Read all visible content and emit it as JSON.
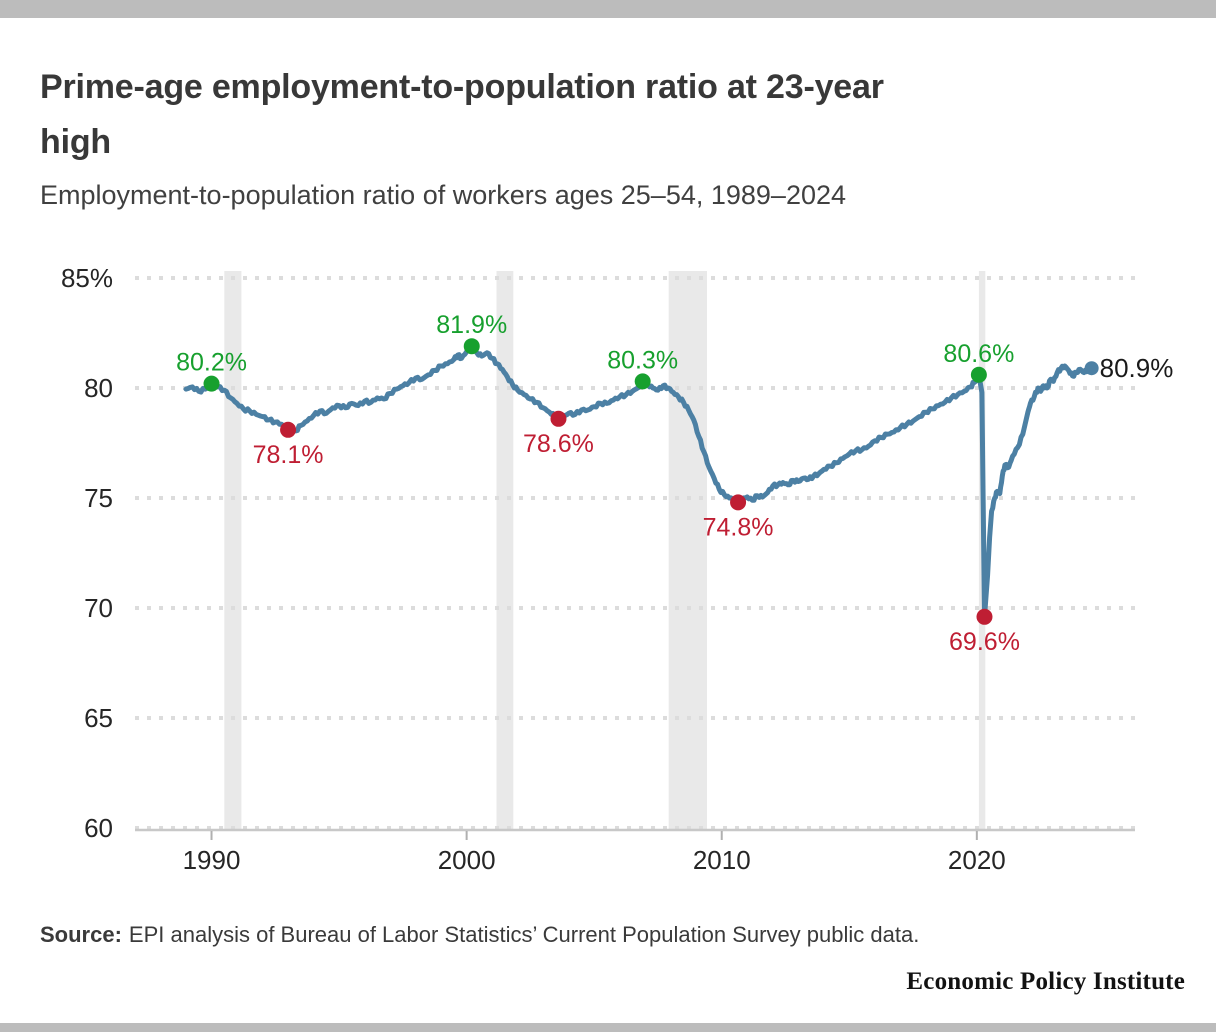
{
  "page": {
    "top_bar_color": "#bcbcbc",
    "bottom_bar_color": "#bcbcbc",
    "background": "#ffffff"
  },
  "header": {
    "title_line1": "Prime-age employment-to-population ratio at 23-year",
    "title_line2": "high",
    "subtitle": "Employment-to-population ratio of workers ages 25–54, 1989–2024"
  },
  "source": {
    "label": "Source:",
    "text": "EPI analysis of Bureau of Labor Statistics’ Current Population Survey public data."
  },
  "footer": {
    "brand": "Economic Policy Institute"
  },
  "chart_data": {
    "type": "line",
    "title": "Prime-age employment-to-population ratio at 23-year high",
    "subtitle": "Employment-to-population ratio of workers ages 25–54, 1989–2024",
    "xlabel": "",
    "ylabel": "",
    "x_domain": [
      1987.0,
      2026.2
    ],
    "y_domain": [
      60,
      85
    ],
    "grid": "dotted-horizontal",
    "legend": "none",
    "line_color": "#4c80a4",
    "peak_color": "#17a02e",
    "trough_color": "#bf1e33",
    "end_label_color": "#1a1a1a",
    "recession_color": "#e9e9e9",
    "gridline_color": "#dcdcdc",
    "axis_color": "#c8c8c8",
    "tick_color": "#b0b0b0",
    "tick_label_color": "#262626",
    "y_ticks": [
      {
        "value": 85,
        "label": "85%"
      },
      {
        "value": 80,
        "label": "80"
      },
      {
        "value": 75,
        "label": "75"
      },
      {
        "value": 70,
        "label": "70"
      },
      {
        "value": 65,
        "label": "65"
      },
      {
        "value": 60,
        "label": "60"
      }
    ],
    "x_ticks": [
      {
        "value": 1990,
        "label": "1990"
      },
      {
        "value": 2000,
        "label": "2000"
      },
      {
        "value": 2010,
        "label": "2010"
      },
      {
        "value": 2020,
        "label": "2020"
      }
    ],
    "recessions": [
      [
        1990.5,
        1991.17
      ],
      [
        2001.17,
        2001.83
      ],
      [
        2007.92,
        2009.42
      ],
      [
        2020.08,
        2020.33
      ]
    ],
    "annotations": [
      {
        "year": 1990.0,
        "value": 80.2,
        "label": "80.2%",
        "kind": "peak",
        "placement": "above"
      },
      {
        "year": 1993.0,
        "value": 78.1,
        "label": "78.1%",
        "kind": "trough",
        "placement": "below"
      },
      {
        "year": 2000.2,
        "value": 81.9,
        "label": "81.9%",
        "kind": "peak",
        "placement": "above"
      },
      {
        "year": 2003.6,
        "value": 78.6,
        "label": "78.6%",
        "kind": "trough",
        "placement": "below"
      },
      {
        "year": 2006.9,
        "value": 80.3,
        "label": "80.3%",
        "kind": "peak",
        "placement": "above"
      },
      {
        "year": 2010.64,
        "value": 74.8,
        "label": "74.8%",
        "kind": "trough",
        "placement": "below"
      },
      {
        "year": 2020.08,
        "value": 80.6,
        "label": "80.6%",
        "kind": "peak",
        "placement": "above"
      },
      {
        "year": 2020.3,
        "value": 69.6,
        "label": "69.6%",
        "kind": "trough",
        "placement": "below"
      }
    ],
    "end_label": {
      "year": 2024.5,
      "value": 80.9,
      "label": "80.9%"
    },
    "series": [
      {
        "name": "Prime-age employment-to-population ratio",
        "points": [
          [
            1989.0,
            79.95
          ],
          [
            1989.25,
            80.05
          ],
          [
            1989.5,
            79.85
          ],
          [
            1989.75,
            79.95
          ],
          [
            1990.0,
            80.2
          ],
          [
            1990.25,
            80.05
          ],
          [
            1990.5,
            79.9
          ],
          [
            1990.75,
            79.55
          ],
          [
            1991.0,
            79.3
          ],
          [
            1991.25,
            79.05
          ],
          [
            1991.5,
            78.95
          ],
          [
            1991.75,
            78.8
          ],
          [
            1992.0,
            78.7
          ],
          [
            1992.25,
            78.55
          ],
          [
            1992.5,
            78.45
          ],
          [
            1992.75,
            78.35
          ],
          [
            1993.0,
            78.1
          ],
          [
            1993.3,
            78.05
          ],
          [
            1993.5,
            78.3
          ],
          [
            1993.75,
            78.5
          ],
          [
            1994.0,
            78.75
          ],
          [
            1994.25,
            78.95
          ],
          [
            1994.5,
            78.85
          ],
          [
            1994.75,
            79.1
          ],
          [
            1995.0,
            79.2
          ],
          [
            1995.25,
            79.1
          ],
          [
            1995.5,
            79.3
          ],
          [
            1995.75,
            79.2
          ],
          [
            1996.0,
            79.4
          ],
          [
            1996.25,
            79.35
          ],
          [
            1996.5,
            79.55
          ],
          [
            1996.75,
            79.5
          ],
          [
            1997.0,
            79.75
          ],
          [
            1997.25,
            79.95
          ],
          [
            1997.5,
            80.1
          ],
          [
            1997.75,
            80.25
          ],
          [
            1998.0,
            80.45
          ],
          [
            1998.25,
            80.4
          ],
          [
            1998.5,
            80.6
          ],
          [
            1998.75,
            80.8
          ],
          [
            1999.0,
            81.0
          ],
          [
            1999.25,
            81.1
          ],
          [
            1999.5,
            81.3
          ],
          [
            1999.65,
            81.5
          ],
          [
            1999.8,
            81.35
          ],
          [
            2000.0,
            81.65
          ],
          [
            2000.2,
            81.9
          ],
          [
            2000.4,
            81.6
          ],
          [
            2000.6,
            81.45
          ],
          [
            2000.8,
            81.6
          ],
          [
            2001.0,
            81.35
          ],
          [
            2001.2,
            81.1
          ],
          [
            2001.4,
            80.85
          ],
          [
            2001.6,
            80.5
          ],
          [
            2001.8,
            80.15
          ],
          [
            2002.0,
            79.9
          ],
          [
            2002.25,
            79.7
          ],
          [
            2002.5,
            79.5
          ],
          [
            2002.75,
            79.35
          ],
          [
            2003.0,
            79.1
          ],
          [
            2003.25,
            78.9
          ],
          [
            2003.45,
            78.75
          ],
          [
            2003.6,
            78.6
          ],
          [
            2003.8,
            78.7
          ],
          [
            2004.0,
            78.85
          ],
          [
            2004.25,
            78.8
          ],
          [
            2004.5,
            79.0
          ],
          [
            2004.75,
            79.0
          ],
          [
            2005.0,
            79.15
          ],
          [
            2005.25,
            79.3
          ],
          [
            2005.5,
            79.3
          ],
          [
            2005.75,
            79.45
          ],
          [
            2006.0,
            79.6
          ],
          [
            2006.25,
            79.7
          ],
          [
            2006.5,
            79.85
          ],
          [
            2006.7,
            80.0
          ],
          [
            2006.9,
            80.3
          ],
          [
            2007.1,
            80.15
          ],
          [
            2007.3,
            80.0
          ],
          [
            2007.5,
            79.9
          ],
          [
            2007.7,
            80.1
          ],
          [
            2007.9,
            80.0
          ],
          [
            2008.1,
            79.8
          ],
          [
            2008.3,
            79.6
          ],
          [
            2008.5,
            79.35
          ],
          [
            2008.7,
            79.0
          ],
          [
            2008.9,
            78.55
          ],
          [
            2009.1,
            77.8
          ],
          [
            2009.3,
            77.1
          ],
          [
            2009.5,
            76.4
          ],
          [
            2009.7,
            75.9
          ],
          [
            2009.9,
            75.4
          ],
          [
            2010.1,
            75.15
          ],
          [
            2010.3,
            75.0
          ],
          [
            2010.5,
            74.95
          ],
          [
            2010.64,
            74.8
          ],
          [
            2010.8,
            74.95
          ],
          [
            2011.0,
            75.05
          ],
          [
            2011.2,
            74.9
          ],
          [
            2011.4,
            75.1
          ],
          [
            2011.6,
            75.05
          ],
          [
            2011.8,
            75.25
          ],
          [
            2012.0,
            75.55
          ],
          [
            2012.2,
            75.6
          ],
          [
            2012.4,
            75.7
          ],
          [
            2012.6,
            75.6
          ],
          [
            2012.8,
            75.8
          ],
          [
            2013.0,
            75.75
          ],
          [
            2013.2,
            75.9
          ],
          [
            2013.4,
            75.85
          ],
          [
            2013.6,
            76.0
          ],
          [
            2013.8,
            76.1
          ],
          [
            2014.0,
            76.3
          ],
          [
            2014.25,
            76.45
          ],
          [
            2014.5,
            76.6
          ],
          [
            2014.75,
            76.8
          ],
          [
            2015.0,
            77.0
          ],
          [
            2015.25,
            77.15
          ],
          [
            2015.5,
            77.2
          ],
          [
            2015.75,
            77.35
          ],
          [
            2016.0,
            77.6
          ],
          [
            2016.25,
            77.75
          ],
          [
            2016.5,
            77.9
          ],
          [
            2016.75,
            78.0
          ],
          [
            2017.0,
            78.2
          ],
          [
            2017.25,
            78.35
          ],
          [
            2017.5,
            78.5
          ],
          [
            2017.75,
            78.7
          ],
          [
            2018.0,
            78.9
          ],
          [
            2018.25,
            79.05
          ],
          [
            2018.5,
            79.2
          ],
          [
            2018.75,
            79.35
          ],
          [
            2019.0,
            79.55
          ],
          [
            2019.25,
            79.7
          ],
          [
            2019.5,
            79.85
          ],
          [
            2019.75,
            80.05
          ],
          [
            2019.9,
            80.25
          ],
          [
            2020.08,
            80.6
          ],
          [
            2020.2,
            79.8
          ],
          [
            2020.3,
            69.6
          ],
          [
            2020.42,
            71.5
          ],
          [
            2020.5,
            73.2
          ],
          [
            2020.58,
            74.4
          ],
          [
            2020.7,
            75.0
          ],
          [
            2020.8,
            75.3
          ],
          [
            2020.9,
            75.2
          ],
          [
            2021.0,
            76.0
          ],
          [
            2021.1,
            76.5
          ],
          [
            2021.25,
            76.4
          ],
          [
            2021.4,
            76.9
          ],
          [
            2021.6,
            77.3
          ],
          [
            2021.8,
            77.9
          ],
          [
            2022.0,
            78.9
          ],
          [
            2022.1,
            79.3
          ],
          [
            2022.25,
            79.6
          ],
          [
            2022.4,
            80.0
          ],
          [
            2022.5,
            79.85
          ],
          [
            2022.6,
            80.1
          ],
          [
            2022.75,
            80.0
          ],
          [
            2022.9,
            80.4
          ],
          [
            2023.0,
            80.3
          ],
          [
            2023.15,
            80.7
          ],
          [
            2023.3,
            80.9
          ],
          [
            2023.45,
            81.0
          ],
          [
            2023.6,
            80.8
          ],
          [
            2023.75,
            80.55
          ],
          [
            2023.9,
            80.7
          ],
          [
            2024.05,
            80.85
          ],
          [
            2024.2,
            80.7
          ],
          [
            2024.35,
            80.85
          ],
          [
            2024.5,
            80.9
          ]
        ]
      }
    ]
  }
}
